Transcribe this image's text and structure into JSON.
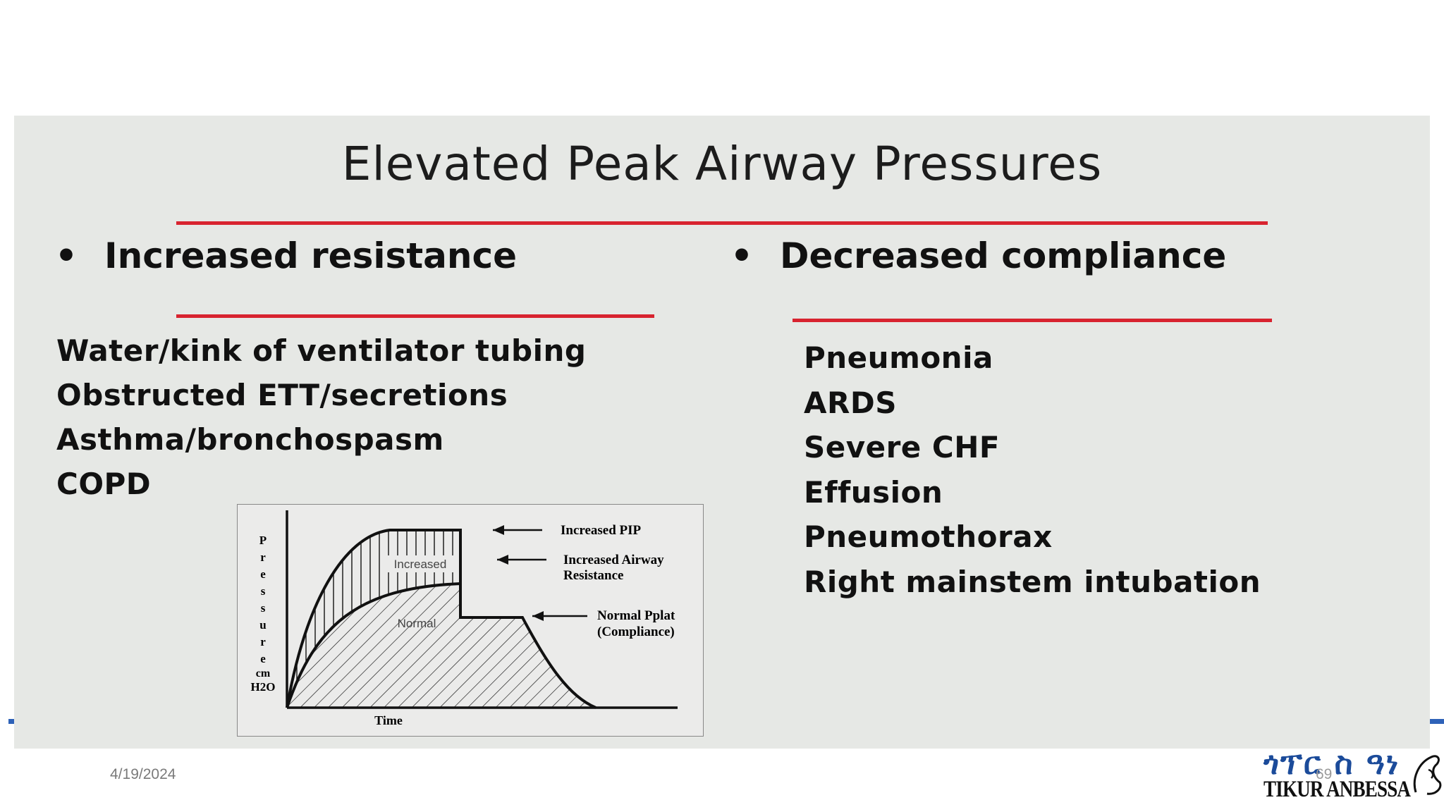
{
  "slide": {
    "title": "Elevated Peak Airway Pressures",
    "bullet_char": "•",
    "left_heading": "Increased resistance",
    "right_heading": "Decreased compliance",
    "left_items": [
      "Water/kink of ventilator tubing",
      "Obstructed ETT/secretions",
      "Asthma/bronchospasm",
      "COPD"
    ],
    "right_items": [
      "Pneumonia",
      "ARDS",
      "Severe CHF",
      "Effusion",
      "Pneumothorax",
      "Right mainstem intubation"
    ],
    "accent_color": "#d8232f"
  },
  "figure": {
    "y_axis_letters": [
      "P",
      "r",
      "e",
      "s",
      "s",
      "u",
      "r",
      "e"
    ],
    "y_axis_unit_1": "cm",
    "y_axis_unit_2": "H2O",
    "x_axis_label": "Time",
    "region_increased": "Increased",
    "region_normal": "Normal",
    "annotation_pip": "Increased PIP",
    "annotation_resistance_1": "Increased Airway",
    "annotation_resistance_2": "Resistance",
    "annotation_pplat_1": "Normal Pplat",
    "annotation_pplat_2": "(Compliance)"
  },
  "footer": {
    "date": "4/19/2024",
    "page_number": "69",
    "brand_color": "#2e62b8"
  },
  "logo": {
    "amharic_text": "ጎፕር ስ ዓነ",
    "latin_text": "TIKUR ANBESSA"
  }
}
